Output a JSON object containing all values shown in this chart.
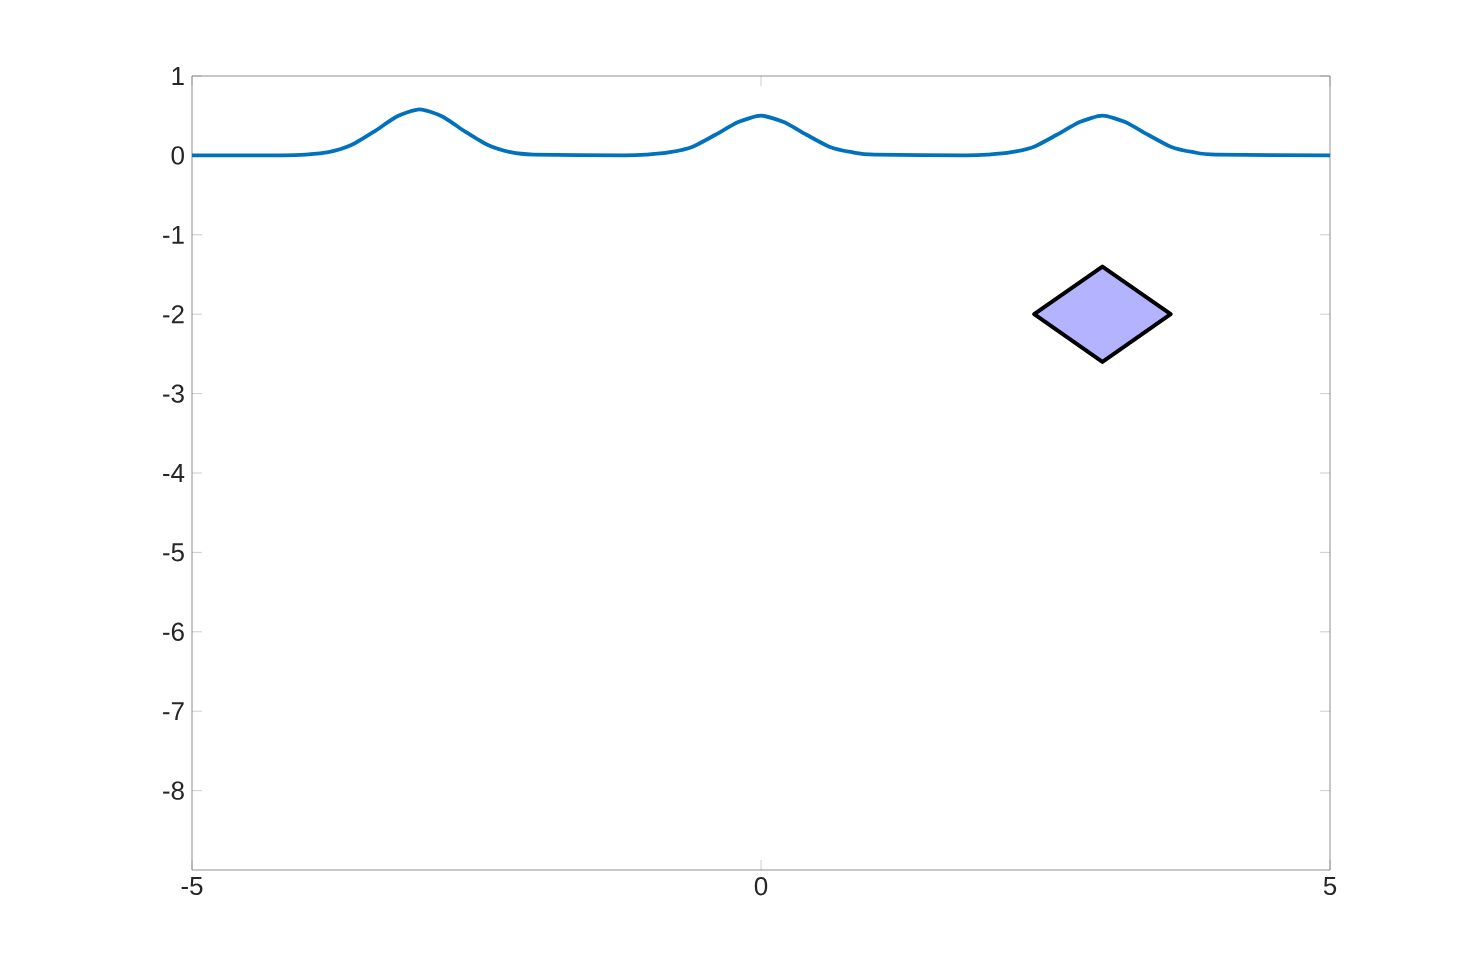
{
  "chart_data": {
    "type": "line",
    "xlim": [
      -5,
      5
    ],
    "ylim": [
      -9,
      1
    ],
    "xticks": [
      -5,
      0,
      5
    ],
    "yticks": [
      -8,
      -7,
      -6,
      -5,
      -4,
      -3,
      -2,
      -1,
      0,
      1
    ],
    "series": [
      {
        "color": "#0072bd",
        "x": [
          -5,
          -4.2,
          -4,
          -3.8,
          -3.6,
          -3.4,
          -3.2,
          -3,
          -2.8,
          -2.6,
          -2.4,
          -2.2,
          -2,
          -1.2,
          -1,
          -0.8,
          -0.6,
          -0.4,
          -0.2,
          0,
          0.2,
          0.4,
          0.6,
          0.8,
          1,
          1.8,
          2,
          2.2,
          2.4,
          2.6,
          2.8,
          3,
          3.2,
          3.4,
          3.6,
          3.8,
          4,
          5
        ],
        "values": [
          0,
          0,
          0.01,
          0.04,
          0.13,
          0.3,
          0.49,
          0.58,
          0.49,
          0.3,
          0.13,
          0.04,
          0.01,
          0,
          0.01,
          0.04,
          0.11,
          0.26,
          0.42,
          0.5,
          0.42,
          0.26,
          0.11,
          0.04,
          0.01,
          0,
          0.01,
          0.04,
          0.11,
          0.26,
          0.42,
          0.5,
          0.42,
          0.26,
          0.11,
          0.04,
          0.01,
          0
        ]
      },
      {
        "type": "area",
        "color": "#b3b3ff",
        "x": [
          2.4,
          3,
          3.6,
          3,
          2.4
        ],
        "values": [
          -2,
          -1.4,
          -2,
          -2.6,
          -2
        ]
      }
    ]
  }
}
